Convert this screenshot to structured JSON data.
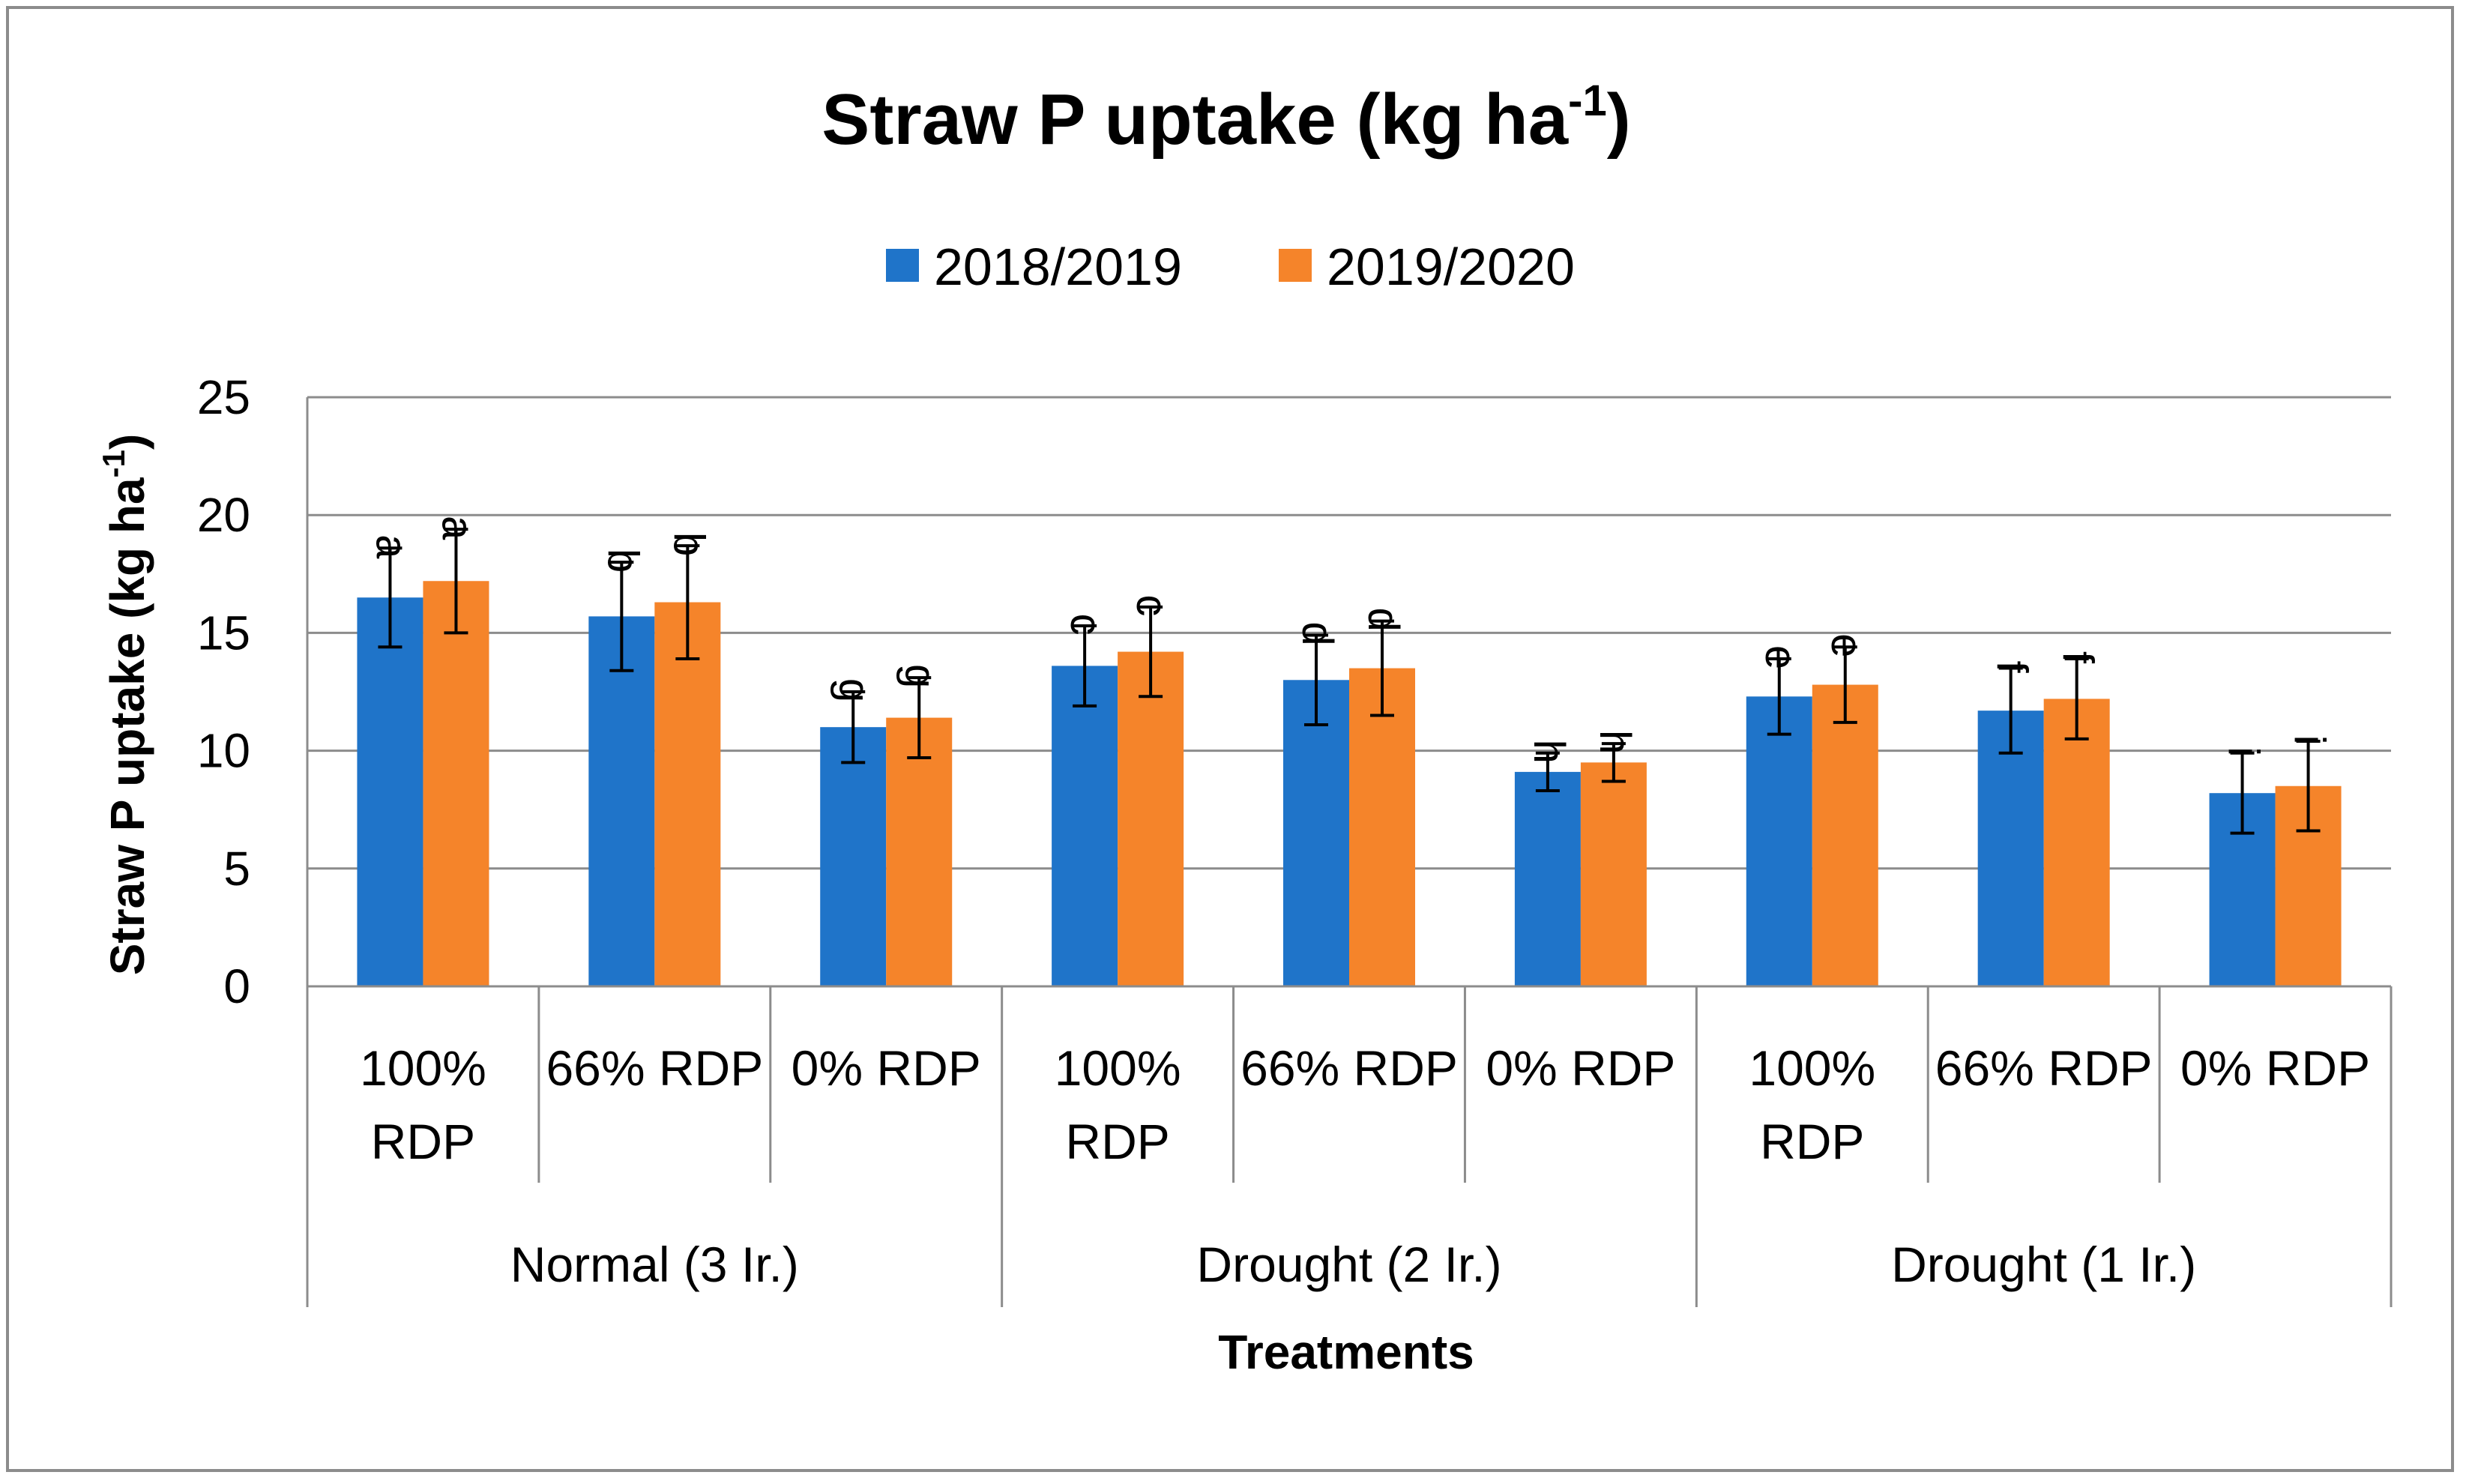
{
  "chart_data": {
    "type": "bar",
    "title": "Straw P uptake (kg ha",
    "title_sup": "-1",
    "title_end": ")",
    "ylabel": "Straw P uptake (kg ha",
    "ylabel_sup": "-1",
    "ylabel_end": ")",
    "xlabel": "Treatments",
    "ylim": [
      0,
      25
    ],
    "yticks": [
      "0",
      "5",
      "10",
      "15",
      "20",
      "25"
    ],
    "grid": true,
    "legend_position": "top-center",
    "categories": [
      {
        "label_lines": [
          "100%",
          "RDP"
        ],
        "group": 0
      },
      {
        "label_lines": [
          "66% RDP"
        ],
        "group": 0
      },
      {
        "label_lines": [
          "0% RDP"
        ],
        "group": 0
      },
      {
        "label_lines": [
          "100%",
          "RDP"
        ],
        "group": 1
      },
      {
        "label_lines": [
          "66% RDP"
        ],
        "group": 1
      },
      {
        "label_lines": [
          "0% RDP"
        ],
        "group": 1
      },
      {
        "label_lines": [
          "100%",
          "RDP"
        ],
        "group": 2
      },
      {
        "label_lines": [
          "66% RDP"
        ],
        "group": 2
      },
      {
        "label_lines": [
          "0% RDP"
        ],
        "group": 2
      }
    ],
    "groups": [
      "Normal (3 Ir.)",
      "Drought (2 Ir.)",
      "Drought (1 Ir.)"
    ],
    "series": [
      {
        "name": "2018/2019",
        "color": "#1f74c9",
        "values": [
          16.5,
          15.7,
          11.0,
          13.6,
          13.0,
          9.1,
          12.3,
          11.7,
          8.2
        ],
        "errors": [
          2.1,
          2.3,
          1.5,
          1.7,
          1.9,
          0.8,
          1.6,
          1.8,
          1.7
        ],
        "sig_labels": [
          "a",
          "b",
          "g",
          "c",
          "d",
          "h",
          "e",
          "f",
          "i"
        ]
      },
      {
        "name": "2019/2020",
        "color": "#f5842a",
        "values": [
          17.2,
          16.3,
          11.4,
          14.2,
          13.5,
          9.5,
          12.8,
          12.2,
          8.5
        ],
        "errors": [
          2.2,
          2.4,
          1.7,
          1.9,
          2.0,
          0.8,
          1.6,
          1.7,
          1.9
        ],
        "sig_labels": [
          "a",
          "b",
          "g",
          "c",
          "d",
          "h",
          "e",
          "f",
          "i"
        ]
      }
    ]
  }
}
